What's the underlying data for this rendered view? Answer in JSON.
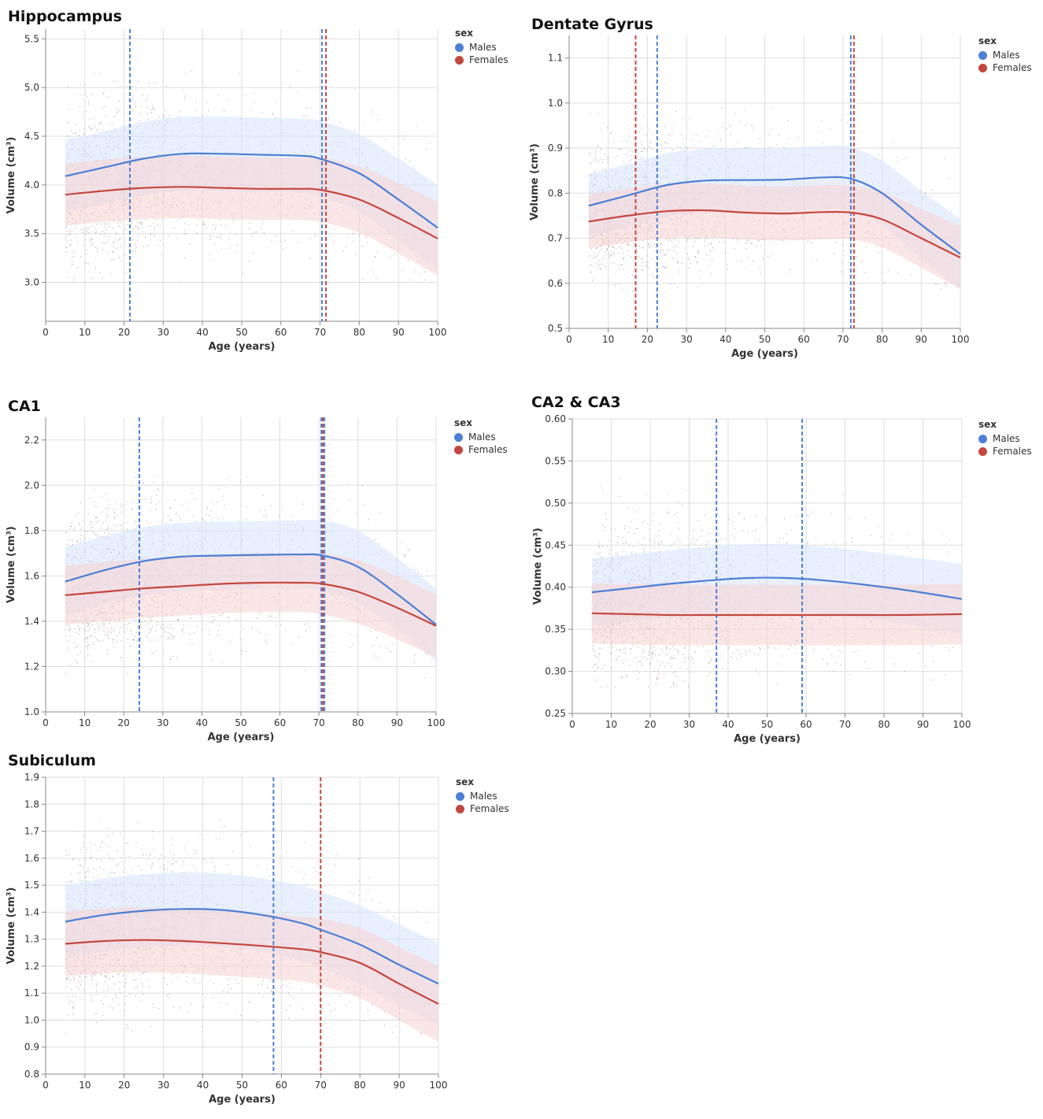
{
  "colors": {
    "male": "#4d7fd4",
    "female": "#c4473f",
    "male_band": "#dbe6fb",
    "female_band": "#f6d6d6",
    "grid": "#dddddd"
  },
  "legend": {
    "title": "sex",
    "items": [
      "Males",
      "Females"
    ]
  },
  "chart_data": [
    {
      "type": "line",
      "title": "Hippocampus",
      "xlabel": "Age (years)",
      "ylabel": "Volume (cm³)",
      "xlim": [
        0,
        100
      ],
      "ylim": [
        2.6,
        5.6
      ],
      "xticks": [
        "0",
        "10",
        "20",
        "30",
        "40",
        "50",
        "60",
        "70",
        "80",
        "90",
        "100"
      ],
      "yticks": [
        "3.0",
        "3.5",
        "4.0",
        "4.5",
        "5.0",
        "5.5"
      ],
      "x": [
        5,
        15,
        25,
        35,
        45,
        55,
        65,
        70,
        80,
        90,
        100
      ],
      "series": [
        {
          "name": "Males",
          "values": [
            4.09,
            4.18,
            4.27,
            4.32,
            4.32,
            4.31,
            4.3,
            4.27,
            4.12,
            3.85,
            3.56
          ],
          "band": [
            0.37,
            0.37,
            0.38,
            0.38,
            0.38,
            0.38,
            0.38,
            0.39,
            0.4,
            0.42,
            0.44
          ]
        },
        {
          "name": "Females",
          "values": [
            3.9,
            3.94,
            3.97,
            3.98,
            3.97,
            3.96,
            3.96,
            3.95,
            3.85,
            3.66,
            3.45
          ],
          "band": [
            0.32,
            0.32,
            0.32,
            0.32,
            0.32,
            0.32,
            0.32,
            0.33,
            0.34,
            0.36,
            0.38
          ]
        }
      ],
      "vlines": [
        {
          "x": 21.5,
          "series": "Males"
        },
        {
          "x": 70.5,
          "series": "Males"
        },
        {
          "x": 71.5,
          "series": "Females"
        }
      ],
      "scatter_yrange": [
        3.0,
        5.2
      ]
    },
    {
      "type": "line",
      "title": "Dentate Gyrus",
      "xlabel": "Age (years)",
      "ylabel": "Volume (cm³)",
      "xlim": [
        0,
        100
      ],
      "ylim": [
        0.5,
        1.15
      ],
      "xticks": [
        "0",
        "10",
        "20",
        "30",
        "40",
        "50",
        "60",
        "70",
        "80",
        "90",
        "100"
      ],
      "yticks": [
        "0.5",
        "0.6",
        "0.7",
        "0.8",
        "0.9",
        "1.0",
        "1.1"
      ],
      "x": [
        5,
        15,
        25,
        35,
        45,
        55,
        65,
        72,
        80,
        90,
        100
      ],
      "series": [
        {
          "name": "Males",
          "values": [
            0.772,
            0.795,
            0.818,
            0.828,
            0.829,
            0.83,
            0.835,
            0.832,
            0.8,
            0.73,
            0.665
          ],
          "band": [
            0.07,
            0.07,
            0.07,
            0.07,
            0.07,
            0.07,
            0.07,
            0.07,
            0.072,
            0.075,
            0.078
          ]
        },
        {
          "name": "Females",
          "values": [
            0.737,
            0.75,
            0.76,
            0.762,
            0.757,
            0.755,
            0.758,
            0.757,
            0.742,
            0.7,
            0.657
          ],
          "band": [
            0.06,
            0.06,
            0.06,
            0.06,
            0.06,
            0.06,
            0.06,
            0.06,
            0.062,
            0.065,
            0.07
          ]
        }
      ],
      "vlines": [
        {
          "x": 17,
          "series": "Females"
        },
        {
          "x": 22.5,
          "series": "Males"
        },
        {
          "x": 72,
          "series": "Males"
        },
        {
          "x": 72.8,
          "series": "Females"
        }
      ],
      "scatter_yrange": [
        0.58,
        1.0
      ]
    },
    {
      "type": "line",
      "title": "CA1",
      "xlabel": "Age (years)",
      "ylabel": "Volume (cm³)",
      "xlim": [
        0,
        100
      ],
      "ylim": [
        1.0,
        2.3
      ],
      "xticks": [
        "0",
        "10",
        "20",
        "30",
        "40",
        "50",
        "60",
        "70",
        "80",
        "90",
        "100"
      ],
      "yticks": [
        "1.0",
        "1.2",
        "1.4",
        "1.6",
        "1.8",
        "2.0",
        "2.2"
      ],
      "x": [
        5,
        15,
        25,
        35,
        45,
        55,
        65,
        71,
        80,
        90,
        100
      ],
      "series": [
        {
          "name": "Males",
          "values": [
            1.575,
            1.625,
            1.665,
            1.685,
            1.69,
            1.693,
            1.695,
            1.69,
            1.64,
            1.52,
            1.385
          ],
          "band": [
            0.15,
            0.15,
            0.15,
            0.15,
            0.15,
            0.15,
            0.15,
            0.155,
            0.16,
            0.16,
            0.16
          ]
        },
        {
          "name": "Females",
          "values": [
            1.515,
            1.53,
            1.545,
            1.555,
            1.565,
            1.57,
            1.57,
            1.565,
            1.53,
            1.46,
            1.38
          ],
          "band": [
            0.13,
            0.13,
            0.13,
            0.13,
            0.13,
            0.13,
            0.13,
            0.135,
            0.14,
            0.14,
            0.14
          ]
        }
      ],
      "vlines": [
        {
          "x": 24,
          "series": "Males"
        },
        {
          "x": 70.6,
          "series": "Males"
        },
        {
          "x": 71.0,
          "series": "Females"
        },
        {
          "x": 71.4,
          "series": "Males"
        }
      ],
      "scatter_yrange": [
        1.15,
        2.05
      ]
    },
    {
      "type": "line",
      "title": "CA2 & CA3",
      "xlabel": "Age (years)",
      "ylabel": "Volume (cm³)",
      "xlim": [
        0,
        100
      ],
      "ylim": [
        0.25,
        0.6
      ],
      "xticks": [
        "0",
        "10",
        "20",
        "30",
        "40",
        "50",
        "60",
        "70",
        "80",
        "90",
        "100"
      ],
      "yticks": [
        "0.25",
        "0.30",
        "0.35",
        "0.40",
        "0.45",
        "0.50",
        "0.55",
        "0.60"
      ],
      "x": [
        5,
        15,
        25,
        35,
        45,
        55,
        65,
        75,
        85,
        100
      ],
      "series": [
        {
          "name": "Males",
          "values": [
            0.394,
            0.399,
            0.404,
            0.408,
            0.411,
            0.411,
            0.408,
            0.403,
            0.397,
            0.386
          ],
          "band": [
            0.04,
            0.04,
            0.04,
            0.04,
            0.04,
            0.04,
            0.04,
            0.04,
            0.04,
            0.042
          ]
        },
        {
          "name": "Females",
          "values": [
            0.369,
            0.368,
            0.367,
            0.367,
            0.367,
            0.367,
            0.367,
            0.367,
            0.367,
            0.368
          ],
          "band": [
            0.036,
            0.036,
            0.036,
            0.036,
            0.036,
            0.036,
            0.036,
            0.036,
            0.036,
            0.036
          ]
        }
      ],
      "vlines": [
        {
          "x": 37,
          "series": "Males"
        },
        {
          "x": 59,
          "series": "Males"
        }
      ],
      "scatter_yrange": [
        0.28,
        0.54
      ]
    },
    {
      "type": "line",
      "title": "Subiculum",
      "xlabel": "Age (years)",
      "ylabel": "Volume (cm³)",
      "xlim": [
        0,
        100
      ],
      "ylim": [
        0.8,
        1.9
      ],
      "xticks": [
        "0",
        "10",
        "20",
        "30",
        "40",
        "50",
        "60",
        "70",
        "80",
        "90",
        "100"
      ],
      "yticks": [
        "0.8",
        "0.9",
        "1.0",
        "1.1",
        "1.2",
        "1.3",
        "1.4",
        "1.5",
        "1.6",
        "1.7",
        "1.8",
        "1.9"
      ],
      "x": [
        5,
        15,
        25,
        35,
        45,
        55,
        65,
        70,
        80,
        90,
        100
      ],
      "series": [
        {
          "name": "Males",
          "values": [
            1.365,
            1.39,
            1.405,
            1.412,
            1.408,
            1.39,
            1.36,
            1.335,
            1.28,
            1.205,
            1.135
          ],
          "band": [
            0.135,
            0.135,
            0.135,
            0.135,
            0.135,
            0.135,
            0.14,
            0.14,
            0.145,
            0.15,
            0.15
          ]
        },
        {
          "name": "Females",
          "values": [
            1.283,
            1.293,
            1.297,
            1.293,
            1.285,
            1.275,
            1.263,
            1.252,
            1.212,
            1.135,
            1.06
          ],
          "band": [
            0.12,
            0.12,
            0.12,
            0.12,
            0.12,
            0.12,
            0.12,
            0.125,
            0.13,
            0.135,
            0.14
          ]
        }
      ],
      "vlines": [
        {
          "x": 58,
          "series": "Males"
        },
        {
          "x": 70,
          "series": "Females"
        }
      ],
      "scatter_yrange": [
        0.95,
        1.8
      ]
    }
  ]
}
